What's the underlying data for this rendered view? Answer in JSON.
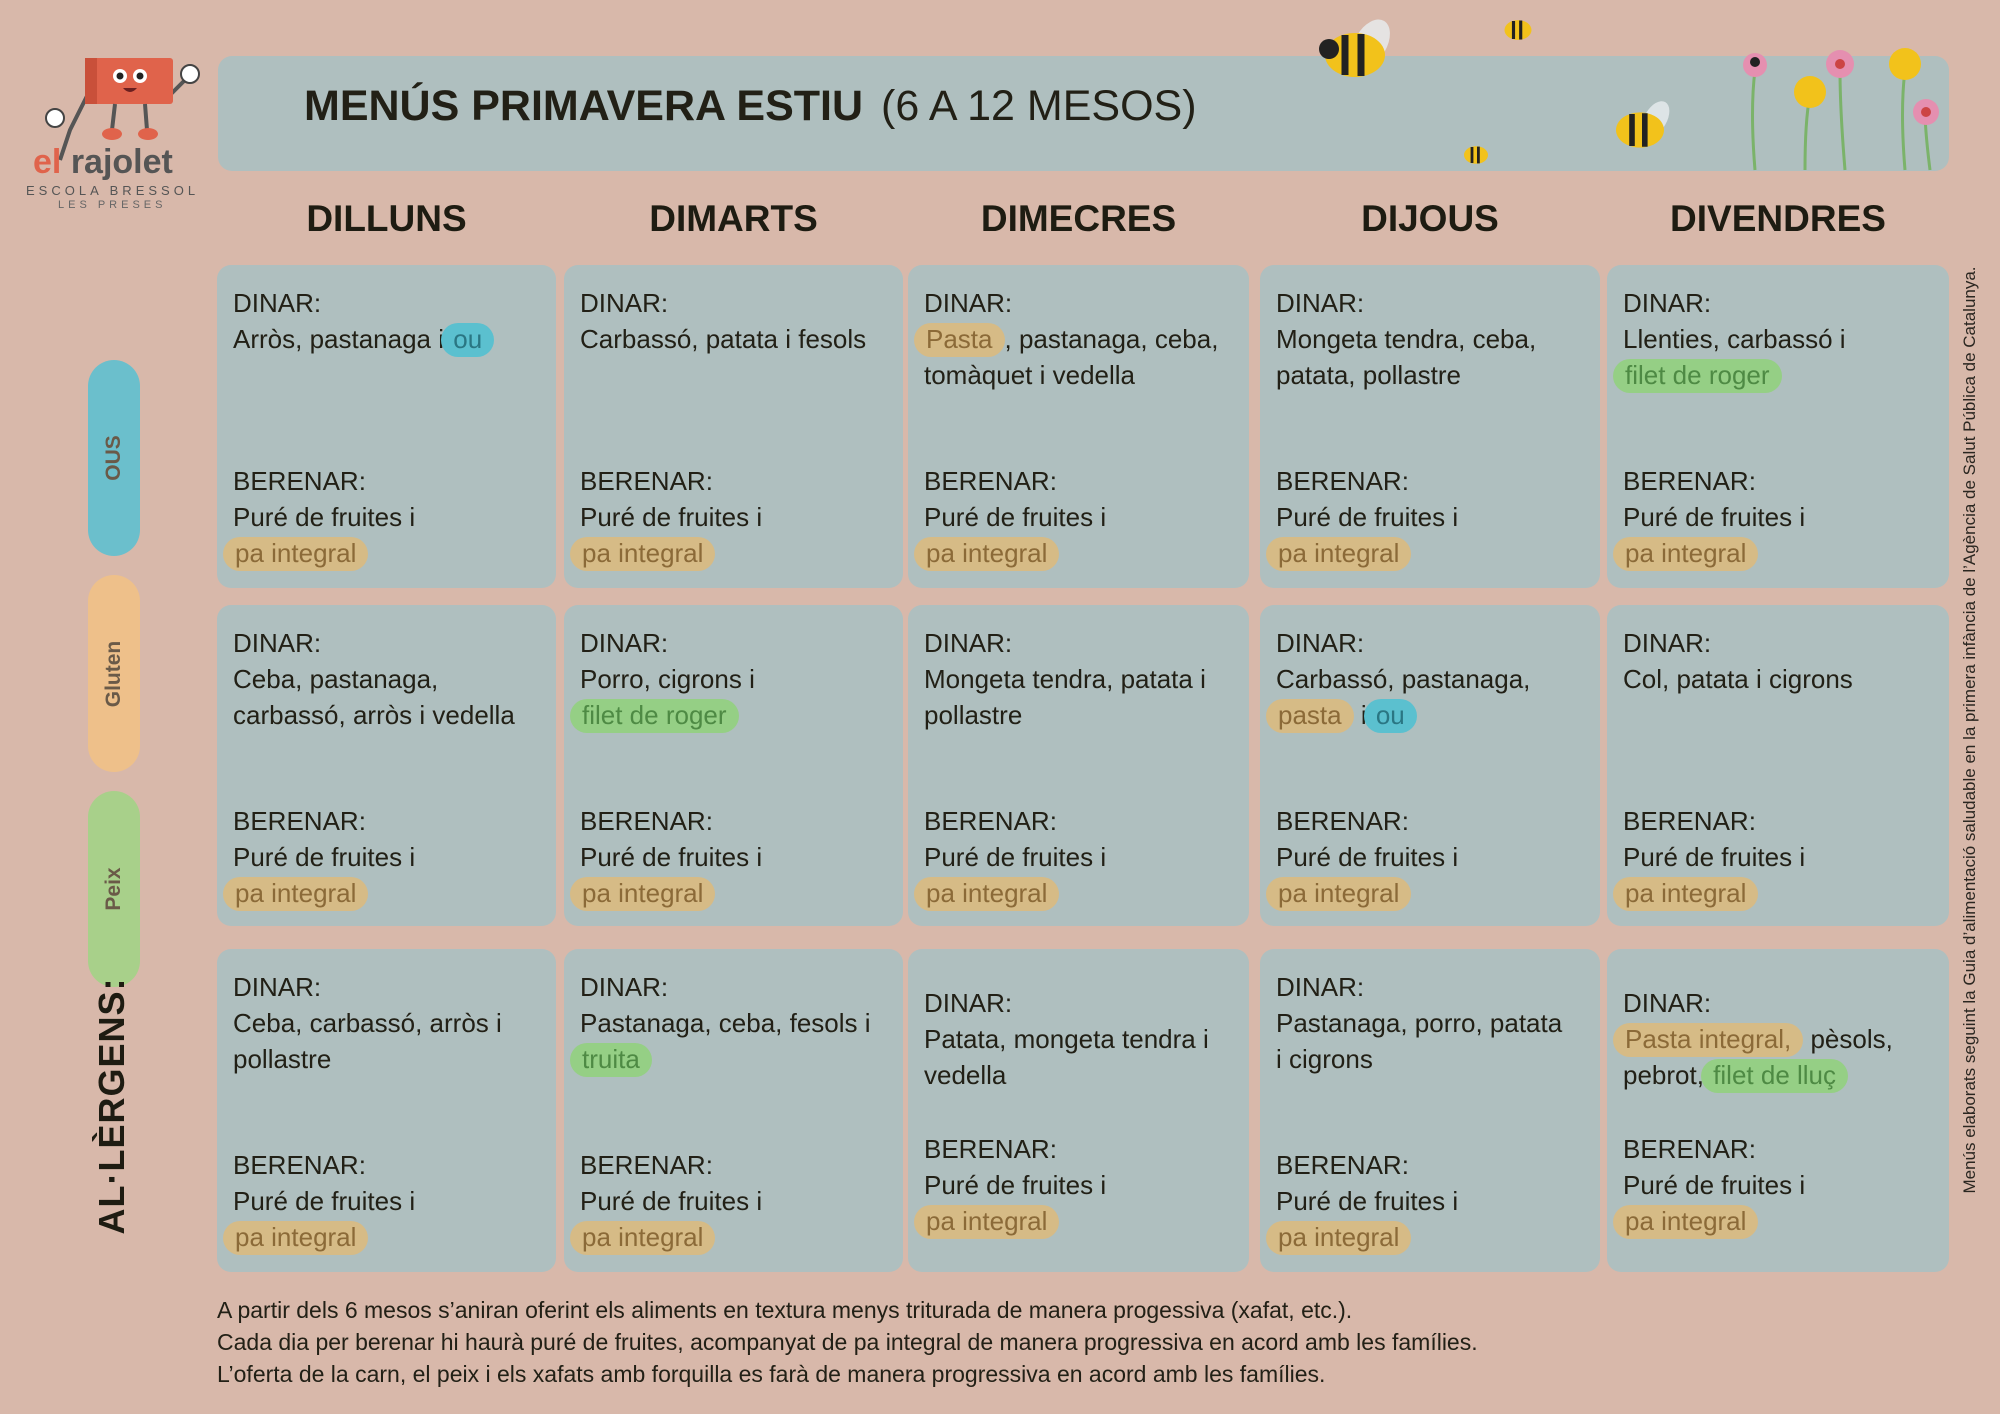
{
  "logo": {
    "name_part1": "el",
    "name_part2": "rajolet",
    "line1": "ESCOLA  BRESSOL",
    "line2": "LES PRESES"
  },
  "header": {
    "title": "MENÚS PRIMAVERA ESTIU",
    "subtitle": "(6 A 12 MESOS)"
  },
  "days": [
    "DILLUNS",
    "DIMARTS",
    "DIMECRES",
    "DIJOUS",
    "DIVENDRES"
  ],
  "allergens": {
    "title": "AL·LÈRGENS:",
    "items": [
      {
        "key": "egg",
        "label": "OUS",
        "color": "#6bbfcc"
      },
      {
        "key": "gluten",
        "label": "Gluten",
        "color": "#eec08a"
      },
      {
        "key": "fish",
        "label": "Peix",
        "color": "#a8d08a"
      }
    ]
  },
  "labels": {
    "lunch": "DINAR:",
    "snack": "BERENAR:"
  },
  "weeks": [
    [
      {
        "lunch": [
          [
            "Arròs, pastanaga i ",
            {
              "t": "ou",
              "a": "egg"
            }
          ]
        ],
        "snack": [
          [
            "Puré de fruites i"
          ],
          [
            {
              "t": "pa integral",
              "a": "gluten"
            }
          ]
        ]
      },
      {
        "lunch": [
          [
            "Carbassó, patata i fesols"
          ]
        ],
        "snack": [
          [
            "Puré de fruites i"
          ],
          [
            {
              "t": "pa integral",
              "a": "gluten"
            }
          ]
        ]
      },
      {
        "lunch": [
          [
            {
              "t": "Pasta",
              "a": "gluten"
            },
            ", pastanaga, ceba,"
          ],
          [
            "tomàquet i vedella"
          ]
        ],
        "snack": [
          [
            "Puré de fruites i"
          ],
          [
            {
              "t": "pa integral",
              "a": "gluten"
            }
          ]
        ]
      },
      {
        "lunch": [
          [
            "Mongeta tendra, ceba,"
          ],
          [
            "patata, pollastre"
          ]
        ],
        "snack": [
          [
            "Puré de fruites i"
          ],
          [
            {
              "t": "pa integral",
              "a": "gluten"
            }
          ]
        ]
      },
      {
        "lunch": [
          [
            "Llenties, carbassó i"
          ],
          [
            {
              "t": "filet de roger",
              "a": "fish"
            }
          ]
        ],
        "snack": [
          [
            "Puré de fruites i"
          ],
          [
            {
              "t": "pa integral",
              "a": "gluten"
            }
          ]
        ]
      }
    ],
    [
      {
        "lunch": [
          [
            "Ceba, pastanaga,"
          ],
          [
            "carbassó, arròs i vedella"
          ]
        ],
        "snack": [
          [
            "Puré de fruites i"
          ],
          [
            {
              "t": "pa integral",
              "a": "gluten"
            }
          ]
        ]
      },
      {
        "lunch": [
          [
            "Porro, cigrons i"
          ],
          [
            {
              "t": "filet de roger",
              "a": "fish"
            }
          ]
        ],
        "snack": [
          [
            "Puré de fruites i"
          ],
          [
            {
              "t": "pa integral",
              "a": "gluten"
            }
          ]
        ]
      },
      {
        "lunch": [
          [
            "Mongeta tendra, patata i"
          ],
          [
            "pollastre"
          ]
        ],
        "snack": [
          [
            "Puré de fruites i"
          ],
          [
            {
              "t": "pa integral",
              "a": "gluten"
            }
          ]
        ]
      },
      {
        "lunch": [
          [
            "Carbassó, pastanaga,"
          ],
          [
            {
              "t": "pasta",
              "a": "gluten"
            },
            " i ",
            {
              "t": "ou",
              "a": "egg"
            }
          ]
        ],
        "snack": [
          [
            "Puré de fruites i"
          ],
          [
            {
              "t": "pa integral",
              "a": "gluten"
            }
          ]
        ]
      },
      {
        "lunch": [
          [
            "Col, patata i cigrons"
          ]
        ],
        "snack": [
          [
            "Puré de fruites i"
          ],
          [
            {
              "t": "pa integral",
              "a": "gluten"
            }
          ]
        ]
      }
    ],
    [
      {
        "lunch": [
          [
            "Ceba, carbassó, arròs i"
          ],
          [
            "pollastre"
          ]
        ],
        "snack": [
          [
            "Puré de fruites i"
          ],
          [
            {
              "t": "pa integral",
              "a": "gluten"
            }
          ]
        ]
      },
      {
        "lunch": [
          [
            "Pastanaga, ceba, fesols i"
          ],
          [
            {
              "t": "truita",
              "a": "fish"
            }
          ]
        ],
        "snack": [
          [
            "Puré de fruites i"
          ],
          [
            {
              "t": "pa integral",
              "a": "gluten"
            }
          ]
        ]
      },
      {
        "lunch": [
          [
            "Patata, mongeta tendra i"
          ],
          [
            "vedella"
          ]
        ],
        "snack": [
          [
            "Puré de fruites i"
          ],
          [
            {
              "t": "pa integral",
              "a": "gluten"
            }
          ]
        ]
      },
      {
        "lunch": [
          [
            "Pastanaga, porro, patata"
          ],
          [
            "i cigrons"
          ]
        ],
        "snack": [
          [
            "Puré de fruites i"
          ],
          [
            {
              "t": "pa integral",
              "a": "gluten"
            }
          ]
        ]
      },
      {
        "lunch": [
          [
            {
              "t": "Pasta integral,",
              "a": "gluten"
            },
            " pèsols,"
          ],
          [
            "pebrot, ",
            {
              "t": "filet de lluç",
              "a": "fish"
            }
          ]
        ],
        "snack": [
          [
            "Puré de fruites i"
          ],
          [
            {
              "t": "pa integral",
              "a": "gluten"
            }
          ]
        ]
      }
    ]
  ],
  "highlight_colors": {
    "egg": "#5bc0cf",
    "gluten": "#d6bb86",
    "fish": "#95cf85"
  },
  "footer": [
    "A partir dels 6 mesos s’aniran oferint els aliments en textura menys triturada de manera progessiva (xafat, etc.).",
    "Cada dia per berenar hi haurà puré de fruites, acompanyat de pa integral de manera progressiva en acord amb les famílies.",
    "L’oferta de la carn, el peix i els xafats amb forquilla es farà de manera  progressiva en acord amb les famílies."
  ],
  "side_note": "Menús elaborats seguint la Guia d’alimentació saludable en la primera infància de l’Agència de Salut Pública de Catalunya."
}
